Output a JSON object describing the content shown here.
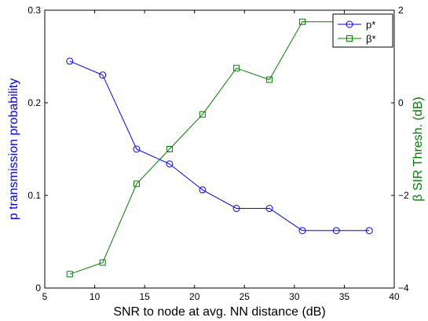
{
  "chart_data": {
    "type": "line",
    "xlabel": "SNR to node at avg. NN distance (dB)",
    "ylabel_left": "p transmission probability",
    "ylabel_right": "β SIR Thresh. (dB)",
    "xlim": [
      5,
      40
    ],
    "ylim_left": [
      0,
      0.3
    ],
    "ylim_right": [
      -4,
      2
    ],
    "x_ticks": [
      "5",
      "10",
      "15",
      "20",
      "25",
      "30",
      "35",
      "40"
    ],
    "y_left_ticks": [
      "0",
      "0.1",
      "0.2",
      "0.3"
    ],
    "y_right_ticks": [
      "−4",
      "−2",
      "0",
      "2"
    ],
    "grid": false,
    "legend_position": "top-right",
    "colors": {
      "left_axis": "#0000ff",
      "right_axis": "#008000"
    },
    "x": [
      7.5,
      10.8,
      14.2,
      17.5,
      20.8,
      24.2,
      27.5,
      30.8,
      34.2,
      37.5
    ],
    "series": [
      {
        "name": "p*",
        "axis": "left",
        "marker": "circle",
        "color": "#0000ff",
        "values": [
          0.245,
          0.23,
          0.15,
          0.134,
          0.106,
          0.086,
          0.086,
          0.062,
          0.062,
          0.062
        ]
      },
      {
        "name": "β*",
        "axis": "right",
        "marker": "square",
        "color": "#008000",
        "x": [
          7.5,
          10.8,
          14.2,
          17.5,
          20.8,
          24.2,
          27.5,
          30.8,
          34.2
        ],
        "values": [
          -3.7,
          -3.45,
          -1.75,
          -1.0,
          -0.25,
          0.75,
          0.5,
          1.75,
          1.75
        ]
      }
    ]
  }
}
